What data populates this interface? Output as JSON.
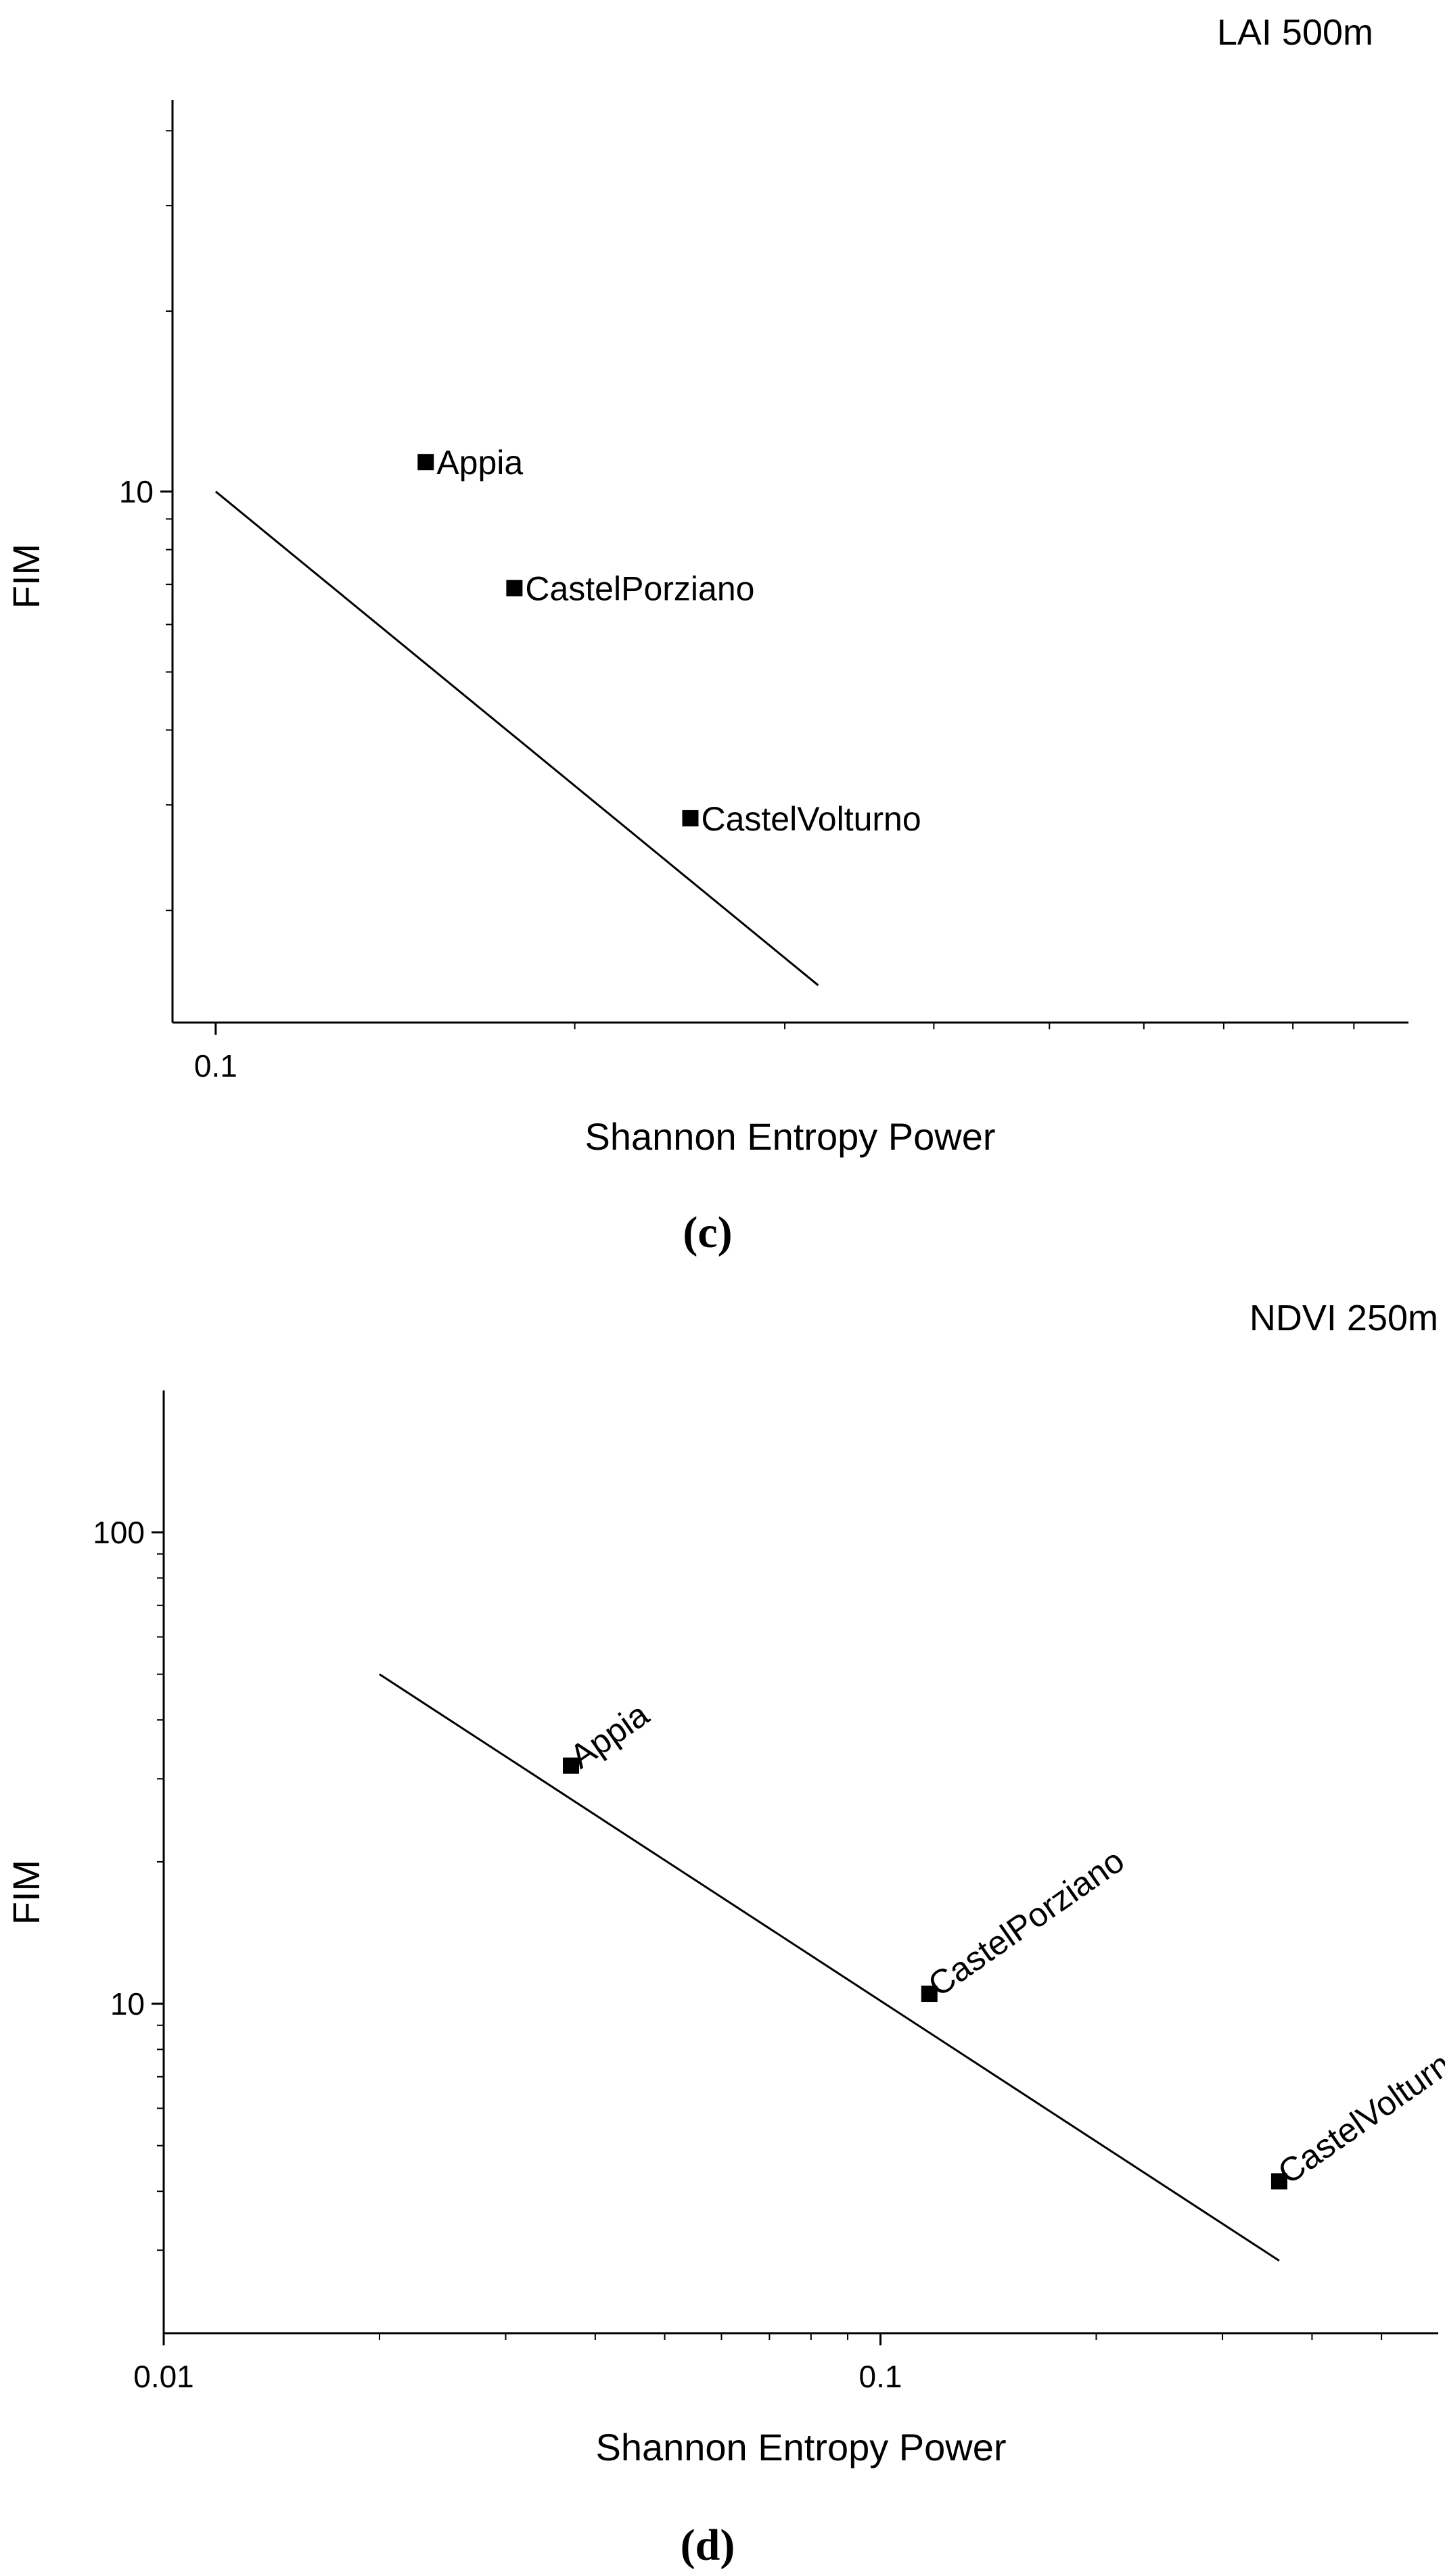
{
  "chart_data": [
    {
      "type": "scatter",
      "title": "LAI 500m",
      "panel_label": "(c)",
      "xlabel": "Shannon Entropy Power",
      "ylabel": "FIM",
      "xscale": "log",
      "yscale": "log",
      "xlim": [
        0.092,
        1.0
      ],
      "ylim": [
        1.3,
        45
      ],
      "xticks": [
        {
          "value": 0.1,
          "label": "0.1"
        }
      ],
      "yticks": [
        {
          "value": 10,
          "label": "10"
        }
      ],
      "points": [
        {
          "name": "Appia",
          "x": 0.15,
          "y": 11.2
        },
        {
          "name": "CastelPorziano",
          "x": 0.178,
          "y": 6.9
        },
        {
          "name": "CastelVolturno",
          "x": 0.25,
          "y": 2.85
        }
      ],
      "fit_line": {
        "x": [
          0.1,
          0.32
        ],
        "y": [
          10.0,
          1.5
        ]
      },
      "grid": false,
      "legend": "none"
    },
    {
      "type": "scatter",
      "title": "NDVI 250m",
      "panel_label": "(d)",
      "xlabel": "Shannon Entropy Power",
      "ylabel": "FIM",
      "xscale": "log",
      "yscale": "log",
      "xlim": [
        0.01,
        0.6
      ],
      "ylim": [
        2.0,
        200
      ],
      "xticks": [
        {
          "value": 0.01,
          "label": "0.01"
        },
        {
          "value": 0.1,
          "label": "0.1"
        }
      ],
      "yticks": [
        {
          "value": 10,
          "label": "10"
        },
        {
          "value": 100,
          "label": "100"
        }
      ],
      "points": [
        {
          "name": "Appia",
          "x": 0.037,
          "y": 32
        },
        {
          "name": "CastelPorziano",
          "x": 0.117,
          "y": 10.5
        },
        {
          "name": "CastelVolturno",
          "x": 0.36,
          "y": 4.2
        }
      ],
      "fit_line": {
        "x": [
          0.02,
          0.36
        ],
        "y": [
          50,
          2.85
        ]
      },
      "grid": false,
      "legend": "none"
    }
  ]
}
